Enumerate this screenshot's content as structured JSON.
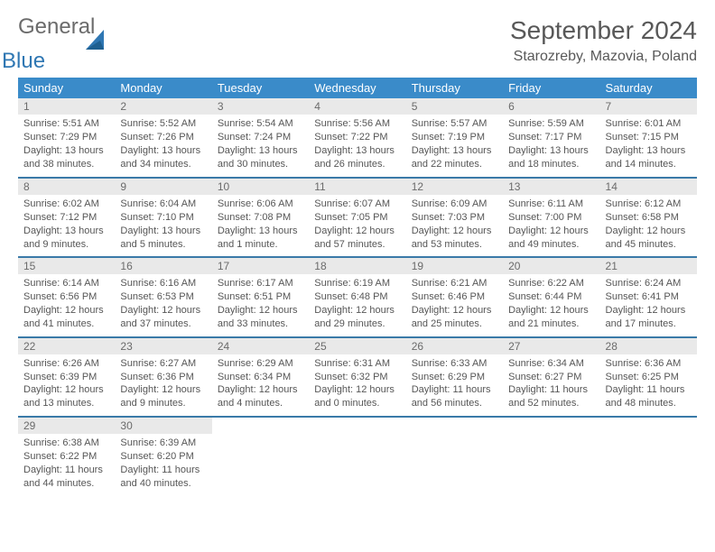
{
  "logo": {
    "general": "General",
    "blue": "Blue"
  },
  "title": "September 2024",
  "location": "Starozreby, Mazovia, Poland",
  "colors": {
    "header_bg": "#3a8bc9",
    "header_text": "#ffffff",
    "daynum_bg": "#e9e9e9",
    "border": "#3a7aa8",
    "brand_gray": "#6b6b6b",
    "brand_blue": "#2f77b3",
    "body_text": "#565656"
  },
  "weekdays": [
    "Sunday",
    "Monday",
    "Tuesday",
    "Wednesday",
    "Thursday",
    "Friday",
    "Saturday"
  ],
  "weeks": [
    [
      {
        "n": "1",
        "sr": "5:51 AM",
        "ss": "7:29 PM",
        "dl": "13 hours and 38 minutes."
      },
      {
        "n": "2",
        "sr": "5:52 AM",
        "ss": "7:26 PM",
        "dl": "13 hours and 34 minutes."
      },
      {
        "n": "3",
        "sr": "5:54 AM",
        "ss": "7:24 PM",
        "dl": "13 hours and 30 minutes."
      },
      {
        "n": "4",
        "sr": "5:56 AM",
        "ss": "7:22 PM",
        "dl": "13 hours and 26 minutes."
      },
      {
        "n": "5",
        "sr": "5:57 AM",
        "ss": "7:19 PM",
        "dl": "13 hours and 22 minutes."
      },
      {
        "n": "6",
        "sr": "5:59 AM",
        "ss": "7:17 PM",
        "dl": "13 hours and 18 minutes."
      },
      {
        "n": "7",
        "sr": "6:01 AM",
        "ss": "7:15 PM",
        "dl": "13 hours and 14 minutes."
      }
    ],
    [
      {
        "n": "8",
        "sr": "6:02 AM",
        "ss": "7:12 PM",
        "dl": "13 hours and 9 minutes."
      },
      {
        "n": "9",
        "sr": "6:04 AM",
        "ss": "7:10 PM",
        "dl": "13 hours and 5 minutes."
      },
      {
        "n": "10",
        "sr": "6:06 AM",
        "ss": "7:08 PM",
        "dl": "13 hours and 1 minute."
      },
      {
        "n": "11",
        "sr": "6:07 AM",
        "ss": "7:05 PM",
        "dl": "12 hours and 57 minutes."
      },
      {
        "n": "12",
        "sr": "6:09 AM",
        "ss": "7:03 PM",
        "dl": "12 hours and 53 minutes."
      },
      {
        "n": "13",
        "sr": "6:11 AM",
        "ss": "7:00 PM",
        "dl": "12 hours and 49 minutes."
      },
      {
        "n": "14",
        "sr": "6:12 AM",
        "ss": "6:58 PM",
        "dl": "12 hours and 45 minutes."
      }
    ],
    [
      {
        "n": "15",
        "sr": "6:14 AM",
        "ss": "6:56 PM",
        "dl": "12 hours and 41 minutes."
      },
      {
        "n": "16",
        "sr": "6:16 AM",
        "ss": "6:53 PM",
        "dl": "12 hours and 37 minutes."
      },
      {
        "n": "17",
        "sr": "6:17 AM",
        "ss": "6:51 PM",
        "dl": "12 hours and 33 minutes."
      },
      {
        "n": "18",
        "sr": "6:19 AM",
        "ss": "6:48 PM",
        "dl": "12 hours and 29 minutes."
      },
      {
        "n": "19",
        "sr": "6:21 AM",
        "ss": "6:46 PM",
        "dl": "12 hours and 25 minutes."
      },
      {
        "n": "20",
        "sr": "6:22 AM",
        "ss": "6:44 PM",
        "dl": "12 hours and 21 minutes."
      },
      {
        "n": "21",
        "sr": "6:24 AM",
        "ss": "6:41 PM",
        "dl": "12 hours and 17 minutes."
      }
    ],
    [
      {
        "n": "22",
        "sr": "6:26 AM",
        "ss": "6:39 PM",
        "dl": "12 hours and 13 minutes."
      },
      {
        "n": "23",
        "sr": "6:27 AM",
        "ss": "6:36 PM",
        "dl": "12 hours and 9 minutes."
      },
      {
        "n": "24",
        "sr": "6:29 AM",
        "ss": "6:34 PM",
        "dl": "12 hours and 4 minutes."
      },
      {
        "n": "25",
        "sr": "6:31 AM",
        "ss": "6:32 PM",
        "dl": "12 hours and 0 minutes."
      },
      {
        "n": "26",
        "sr": "6:33 AM",
        "ss": "6:29 PM",
        "dl": "11 hours and 56 minutes."
      },
      {
        "n": "27",
        "sr": "6:34 AM",
        "ss": "6:27 PM",
        "dl": "11 hours and 52 minutes."
      },
      {
        "n": "28",
        "sr": "6:36 AM",
        "ss": "6:25 PM",
        "dl": "11 hours and 48 minutes."
      }
    ],
    [
      {
        "n": "29",
        "sr": "6:38 AM",
        "ss": "6:22 PM",
        "dl": "11 hours and 44 minutes."
      },
      {
        "n": "30",
        "sr": "6:39 AM",
        "ss": "6:20 PM",
        "dl": "11 hours and 40 minutes."
      },
      null,
      null,
      null,
      null,
      null
    ]
  ],
  "labels": {
    "sunrise": "Sunrise:",
    "sunset": "Sunset:",
    "daylight": "Daylight:"
  },
  "style": {
    "cell_font_size": 11,
    "header_font_size": 13,
    "title_font_size": 28,
    "location_font_size": 16
  }
}
